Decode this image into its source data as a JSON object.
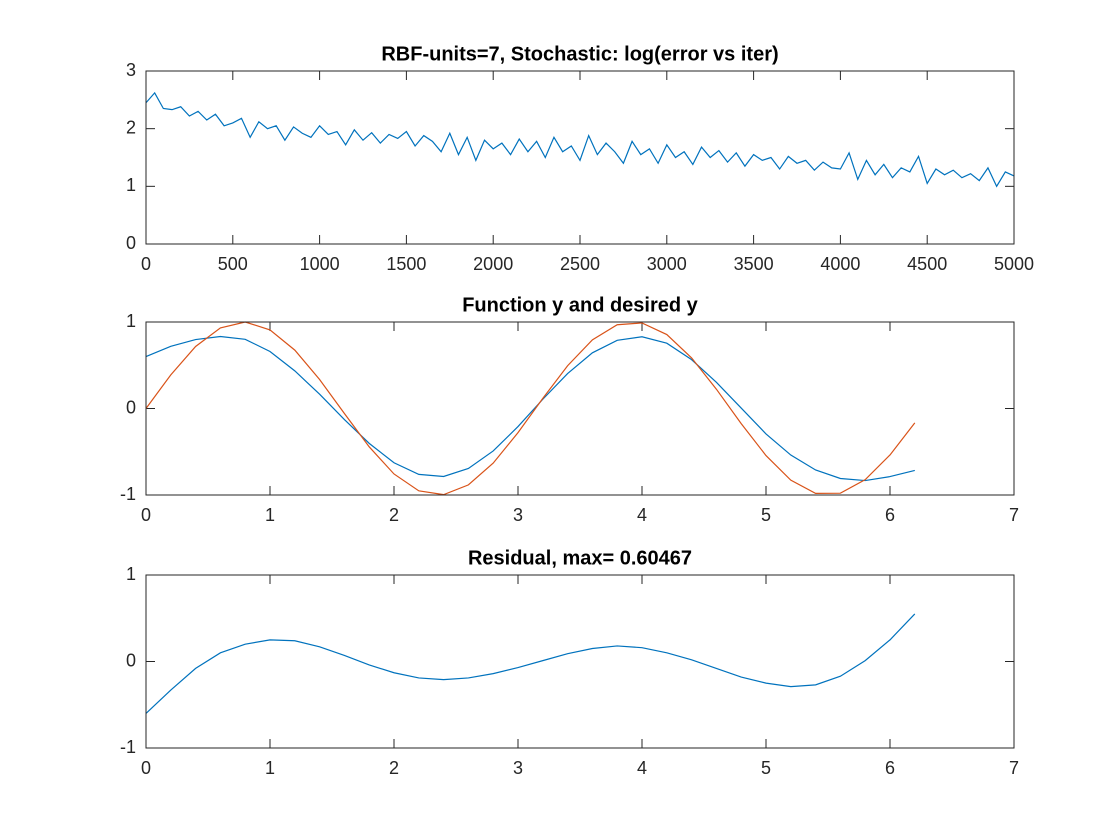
{
  "chart_data": [
    {
      "type": "line",
      "title": "RBF-units=7, Stochastic: log(error vs iter)",
      "x": [
        0,
        50,
        100,
        150,
        200,
        250,
        300,
        350,
        400,
        450,
        500,
        550,
        600,
        650,
        700,
        750,
        800,
        850,
        900,
        950,
        1000,
        1050,
        1100,
        1150,
        1200,
        1250,
        1300,
        1350,
        1400,
        1450,
        1500,
        1550,
        1600,
        1650,
        1700,
        1750,
        1800,
        1850,
        1900,
        1950,
        2000,
        2050,
        2100,
        2150,
        2200,
        2250,
        2300,
        2350,
        2400,
        2450,
        2500,
        2550,
        2600,
        2650,
        2700,
        2750,
        2800,
        2850,
        2900,
        2950,
        3000,
        3050,
        3100,
        3150,
        3200,
        3250,
        3300,
        3350,
        3400,
        3450,
        3500,
        3550,
        3600,
        3650,
        3700,
        3750,
        3800,
        3850,
        3900,
        3950,
        4000,
        4050,
        4100,
        4150,
        4200,
        4250,
        4300,
        4350,
        4400,
        4450,
        4500,
        4550,
        4600,
        4650,
        4700,
        4750,
        4800,
        4850,
        4900,
        4950,
        5000
      ],
      "series": [
        {
          "color": "#0072bd",
          "values": [
            2.45,
            2.62,
            2.35,
            2.33,
            2.38,
            2.22,
            2.3,
            2.15,
            2.25,
            2.05,
            2.1,
            2.18,
            1.85,
            2.12,
            2.0,
            2.05,
            1.8,
            2.03,
            1.92,
            1.85,
            2.05,
            1.9,
            1.95,
            1.72,
            1.98,
            1.8,
            1.93,
            1.75,
            1.9,
            1.83,
            1.95,
            1.7,
            1.88,
            1.78,
            1.6,
            1.92,
            1.55,
            1.85,
            1.45,
            1.8,
            1.65,
            1.75,
            1.55,
            1.82,
            1.6,
            1.78,
            1.5,
            1.85,
            1.6,
            1.7,
            1.45,
            1.88,
            1.55,
            1.75,
            1.6,
            1.4,
            1.78,
            1.55,
            1.65,
            1.4,
            1.72,
            1.5,
            1.6,
            1.38,
            1.68,
            1.5,
            1.62,
            1.42,
            1.58,
            1.35,
            1.55,
            1.45,
            1.5,
            1.3,
            1.52,
            1.4,
            1.45,
            1.28,
            1.42,
            1.32,
            1.3,
            1.58,
            1.12,
            1.45,
            1.2,
            1.38,
            1.15,
            1.32,
            1.25,
            1.52,
            1.05,
            1.3,
            1.2,
            1.28,
            1.15,
            1.22,
            1.1,
            1.32,
            1.0,
            1.25,
            1.18
          ]
        }
      ],
      "xlim": [
        0,
        5000
      ],
      "xticks": [
        0,
        500,
        1000,
        1500,
        2000,
        2500,
        3000,
        3500,
        4000,
        4500,
        5000
      ],
      "ylim": [
        0,
        3
      ],
      "yticks": [
        0,
        1,
        2,
        3
      ]
    },
    {
      "type": "line",
      "title": "Function y and desired y",
      "x": [
        0,
        0.2,
        0.4,
        0.6,
        0.8,
        1.0,
        1.2,
        1.4,
        1.6,
        1.8,
        2.0,
        2.2,
        2.4,
        2.6,
        2.8,
        3.0,
        3.2,
        3.4,
        3.6,
        3.8,
        4.0,
        4.2,
        4.4,
        4.6,
        4.8,
        5.0,
        5.2,
        5.4,
        5.6,
        5.8,
        6.0,
        6.2
      ],
      "series": [
        {
          "color": "#0072bd",
          "values": [
            0.6,
            0.719,
            0.797,
            0.832,
            0.8,
            0.659,
            0.435,
            0.165,
            -0.128,
            -0.403,
            -0.627,
            -0.762,
            -0.786,
            -0.693,
            -0.491,
            -0.209,
            0.107,
            0.404,
            0.644,
            0.788,
            0.829,
            0.755,
            0.565,
            0.303,
            0.005,
            -0.294,
            -0.538,
            -0.711,
            -0.809,
            -0.833,
            -0.787,
            -0.716
          ]
        },
        {
          "color": "#d95319",
          "values": [
            0,
            0.389,
            0.717,
            0.932,
            1.0,
            0.909,
            0.675,
            0.335,
            -0.058,
            -0.443,
            -0.757,
            -0.952,
            -0.996,
            -0.883,
            -0.631,
            -0.279,
            0.117,
            0.494,
            0.794,
            0.968,
            0.989,
            0.855,
            0.585,
            0.223,
            -0.175,
            -0.544,
            -0.828,
            -0.981,
            -0.979,
            -0.823,
            -0.537,
            -0.166
          ]
        }
      ],
      "xlim": [
        0,
        7
      ],
      "xticks": [
        0,
        1,
        2,
        3,
        4,
        5,
        6,
        7
      ],
      "ylim": [
        -1,
        1
      ],
      "yticks": [
        -1,
        0,
        1
      ]
    },
    {
      "type": "line",
      "title": "Residual, max= 0.60467",
      "x": [
        0,
        0.2,
        0.4,
        0.6,
        0.8,
        1.0,
        1.2,
        1.4,
        1.6,
        1.8,
        2.0,
        2.2,
        2.4,
        2.6,
        2.8,
        3.0,
        3.2,
        3.4,
        3.6,
        3.8,
        4.0,
        4.2,
        4.4,
        4.6,
        4.8,
        5.0,
        5.2,
        5.4,
        5.6,
        5.8,
        6.0,
        6.2
      ],
      "series": [
        {
          "color": "#0072bd",
          "values": [
            -0.6,
            -0.33,
            -0.08,
            0.1,
            0.2,
            0.25,
            0.24,
            0.17,
            0.07,
            -0.04,
            -0.13,
            -0.19,
            -0.21,
            -0.19,
            -0.14,
            -0.07,
            0.01,
            0.09,
            0.15,
            0.18,
            0.16,
            0.1,
            0.02,
            -0.08,
            -0.18,
            -0.25,
            -0.29,
            -0.27,
            -0.17,
            0.01,
            0.25,
            0.55
          ]
        }
      ],
      "xlim": [
        0,
        7
      ],
      "xticks": [
        0,
        1,
        2,
        3,
        4,
        5,
        6,
        7
      ],
      "ylim": [
        -1,
        1
      ],
      "yticks": [
        -1,
        0,
        1
      ]
    }
  ]
}
